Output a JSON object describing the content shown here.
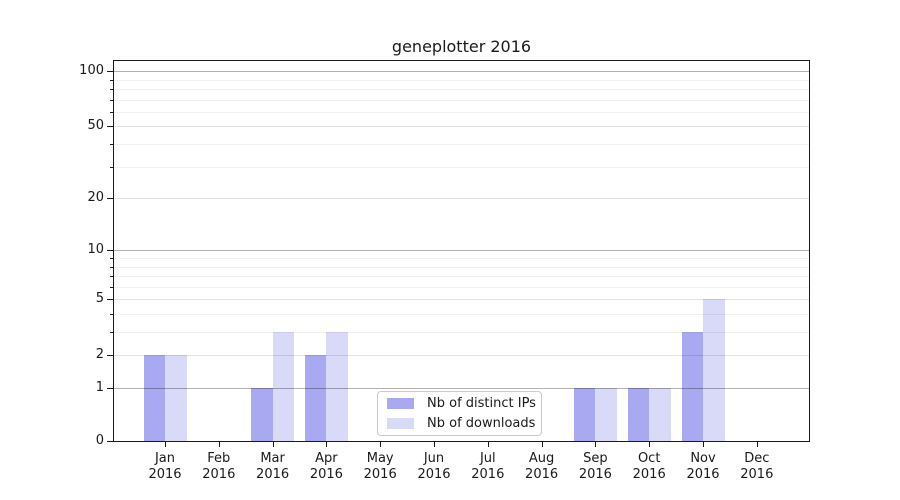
{
  "title": "geneplotter 2016",
  "chart_data": {
    "type": "bar",
    "title": "geneplotter 2016",
    "categories": [
      "Jan 2016",
      "Feb 2016",
      "Mar 2016",
      "Apr 2016",
      "May 2016",
      "Jun 2016",
      "Jul 2016",
      "Aug 2016",
      "Sep 2016",
      "Oct 2016",
      "Nov 2016",
      "Dec 2016"
    ],
    "series": [
      {
        "name": "Nb of distinct IPs",
        "color": "#a9a9f2",
        "values": [
          2,
          0,
          1,
          2,
          0,
          0,
          0,
          0,
          1,
          1,
          3,
          0
        ]
      },
      {
        "name": "Nb of downloads",
        "color": "#d9d9f8",
        "values": [
          2,
          0,
          3,
          3,
          0,
          0,
          0,
          0,
          1,
          1,
          5,
          0
        ]
      }
    ],
    "xlabel": "",
    "ylabel": "",
    "y_scale": "log10(1+x)",
    "ylim": [
      0,
      116
    ],
    "y_ticks": [
      0,
      1,
      2,
      5,
      10,
      20,
      50,
      100
    ],
    "y_decade_gridlines": [
      1,
      10,
      100
    ],
    "y_labeled_gridlines": [
      2,
      5,
      20,
      50
    ],
    "y_minor_gridlines": [
      3,
      4,
      6,
      7,
      8,
      9,
      30,
      40,
      60,
      70,
      80,
      90
    ],
    "grid": true,
    "legend_position": "lower center"
  },
  "legend": {
    "entries": [
      "Nb of distinct IPs",
      "Nb of downloads"
    ]
  }
}
